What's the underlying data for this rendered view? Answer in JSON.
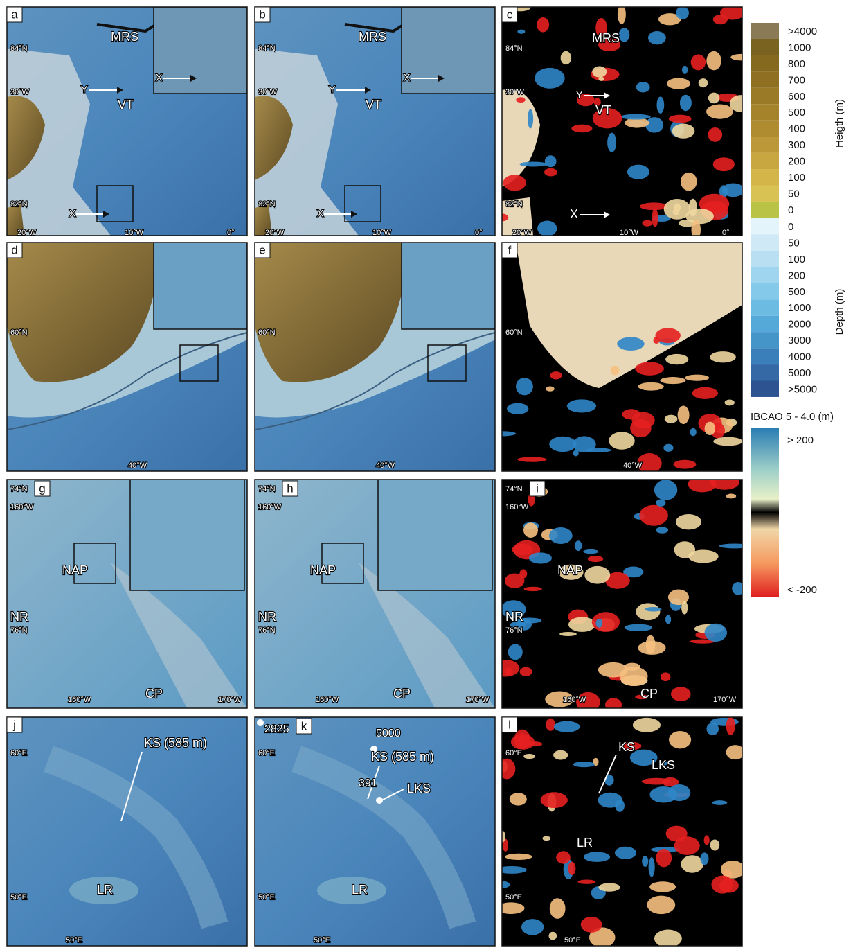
{
  "panels": [
    {
      "letter": "a",
      "labels": [
        {
          "text": "MRS"
        },
        {
          "text": "84°N"
        },
        {
          "text": "30°W"
        },
        {
          "text": "Y"
        },
        {
          "text": "VT"
        },
        {
          "text": "82°N"
        },
        {
          "text": "X"
        },
        {
          "text": "X"
        },
        {
          "text": "20°W"
        },
        {
          "text": "10°W"
        },
        {
          "text": "0°"
        }
      ]
    },
    {
      "letter": "b",
      "labels": [
        {
          "text": "MRS"
        },
        {
          "text": "84°N"
        },
        {
          "text": "30°W"
        },
        {
          "text": "Y"
        },
        {
          "text": "VT"
        },
        {
          "text": "82°N"
        },
        {
          "text": "X"
        },
        {
          "text": "X"
        },
        {
          "text": "20°W"
        },
        {
          "text": "10°W"
        },
        {
          "text": "0°"
        }
      ]
    },
    {
      "letter": "c",
      "labels": [
        {
          "text": "MRS"
        },
        {
          "text": "84°N"
        },
        {
          "text": "30°W"
        },
        {
          "text": "Y"
        },
        {
          "text": "VT"
        },
        {
          "text": "82°N"
        },
        {
          "text": "X"
        },
        {
          "text": "20°W"
        },
        {
          "text": "10°W"
        },
        {
          "text": "0°"
        }
      ]
    },
    {
      "letter": "d",
      "labels": [
        {
          "text": "60°N"
        },
        {
          "text": "40°W"
        }
      ]
    },
    {
      "letter": "e",
      "labels": [
        {
          "text": "60°N"
        },
        {
          "text": "40°W"
        }
      ]
    },
    {
      "letter": "f",
      "labels": [
        {
          "text": "60°N"
        },
        {
          "text": "40°W"
        }
      ]
    },
    {
      "letter": "g",
      "labels": [
        {
          "text": "74°N"
        },
        {
          "text": "160°W"
        },
        {
          "text": "NAP"
        },
        {
          "text": "NR"
        },
        {
          "text": "76°N"
        },
        {
          "text": "160°W"
        },
        {
          "text": "CP"
        },
        {
          "text": "170°W"
        }
      ]
    },
    {
      "letter": "h",
      "labels": [
        {
          "text": "74°N"
        },
        {
          "text": "160°W"
        },
        {
          "text": "NAP"
        },
        {
          "text": "NR"
        },
        {
          "text": "76°N"
        },
        {
          "text": "160°W"
        },
        {
          "text": "CP"
        },
        {
          "text": "170°W"
        }
      ]
    },
    {
      "letter": "i",
      "labels": [
        {
          "text": "74°N"
        },
        {
          "text": "160°W"
        },
        {
          "text": "NAP"
        },
        {
          "text": "NR"
        },
        {
          "text": "76°N"
        },
        {
          "text": "160°W"
        },
        {
          "text": "CP"
        },
        {
          "text": "170°W"
        }
      ]
    },
    {
      "letter": "j",
      "labels": [
        {
          "text": "60°E"
        },
        {
          "text": "KS (585 m)"
        },
        {
          "text": "LR"
        },
        {
          "text": "50°E"
        },
        {
          "text": "50°E"
        }
      ]
    },
    {
      "letter": "k",
      "labels": [
        {
          "text": "2825"
        },
        {
          "text": "60°E"
        },
        {
          "text": "5000"
        },
        {
          "text": "KS (585 m)"
        },
        {
          "text": "391"
        },
        {
          "text": "LKS"
        },
        {
          "text": "LR"
        },
        {
          "text": "50°E"
        },
        {
          "text": "50°E"
        }
      ]
    },
    {
      "letter": "l",
      "labels": [
        {
          "text": "60°E"
        },
        {
          "text": "KS"
        },
        {
          "text": "LKS"
        },
        {
          "text": "LR"
        },
        {
          "text": "50°E"
        },
        {
          "text": "50°E"
        }
      ]
    }
  ],
  "legend": {
    "height": {
      "title": "Heigth (m)",
      "items": [
        ">4000",
        "1000",
        "800",
        "700",
        "600",
        "500",
        "400",
        "300",
        "200",
        "100",
        "50",
        "0"
      ]
    },
    "depth": {
      "title": "Depth (m)",
      "items": [
        "0",
        "50",
        "100",
        "200",
        "500",
        "1000",
        "2000",
        "3000",
        "4000",
        "5000",
        ">5000"
      ]
    },
    "difference": {
      "title": "IBCAO 5 - 4.0 (m)",
      "max_label": "> 200",
      "min_label": "< -200"
    }
  }
}
